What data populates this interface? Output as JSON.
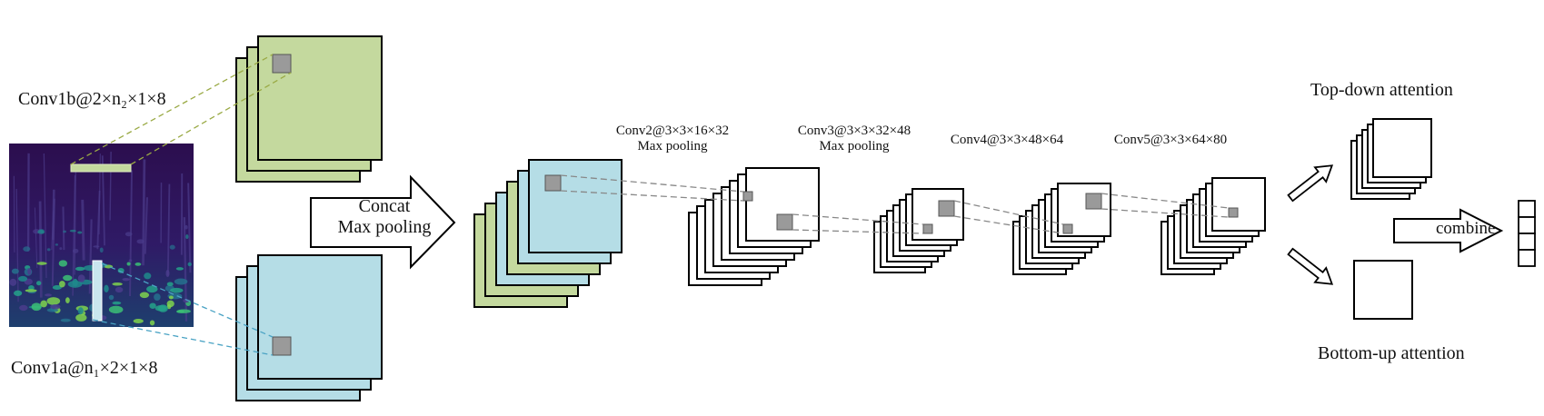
{
  "labels": {
    "conv1b": "Conv1b@2×n₂×1×8",
    "conv1a": "Conv1a@n₁×2×1×8",
    "concat_arrow": "Concat\nMax pooling",
    "conv2": "Conv2@3×3×16×32\nMax pooling",
    "conv3": "Conv3@3×3×32×48\nMax pooling",
    "conv4": "Conv4@3×3×48×64",
    "conv5": "Conv5@3×3×64×80",
    "top_down": "Top-down attention",
    "bottom_up": "Bottom-up attention",
    "combine": "combine"
  },
  "colors": {
    "green": "#c4d99e",
    "blue": "#b5dde6",
    "gray_kernel": "#9a9a9a",
    "stroke": "#000000",
    "dash_green": "#9aaa45",
    "dash_blue": "#4aa3c4",
    "dash_gray": "#888888",
    "spectrogram_bg": "#3a0f5a"
  }
}
